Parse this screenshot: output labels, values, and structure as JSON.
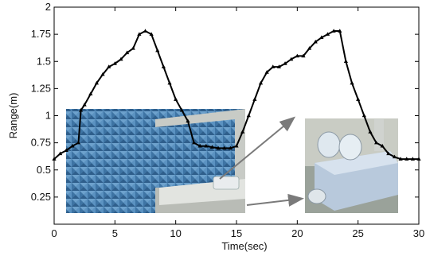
{
  "chart_data": {
    "type": "line",
    "title": "",
    "xlabel": "Time(sec)",
    "ylabel": "Range(m)",
    "xlim": [
      0,
      30
    ],
    "ylim": [
      0,
      2
    ],
    "grid": false,
    "xticks": [
      0,
      5,
      10,
      15,
      20,
      25,
      30
    ],
    "xtick_labels": [
      "0",
      "5",
      "10",
      "15",
      "20",
      "25",
      "30"
    ],
    "yticks": [
      0.25,
      0.5,
      0.75,
      1,
      1.25,
      1.5,
      1.75,
      2
    ],
    "ytick_labels": [
      "0.25",
      "0.5",
      "0.75",
      "1",
      "1.25",
      "1.5",
      "1.75",
      "2"
    ],
    "series": [
      {
        "color": "#000000",
        "marker": "triangle",
        "x": [
          0,
          0.5,
          1,
          1.5,
          2,
          2.2,
          2.5,
          3,
          3.5,
          4,
          4.5,
          5,
          5.5,
          6,
          6.5,
          7,
          7.5,
          8,
          8.5,
          9,
          9.5,
          10,
          10.5,
          11,
          11.5,
          12,
          12.5,
          13,
          13.5,
          14,
          14.5,
          15,
          15.5,
          16,
          16.5,
          17,
          17.5,
          18,
          18.5,
          19,
          19.5,
          20,
          20.5,
          21,
          21.5,
          22,
          22.5,
          23,
          23.5,
          24,
          24.5,
          25,
          25.5,
          26,
          26.5,
          27,
          27.5,
          28,
          28.5,
          29,
          29.5,
          30
        ],
        "y": [
          0.6,
          0.65,
          0.68,
          0.72,
          0.75,
          1.05,
          1.1,
          1.2,
          1.3,
          1.38,
          1.45,
          1.48,
          1.52,
          1.58,
          1.62,
          1.75,
          1.78,
          1.75,
          1.6,
          1.45,
          1.3,
          1.15,
          1.05,
          0.95,
          0.75,
          0.72,
          0.72,
          0.71,
          0.7,
          0.7,
          0.7,
          0.72,
          0.85,
          1.0,
          1.15,
          1.3,
          1.4,
          1.45,
          1.45,
          1.48,
          1.52,
          1.55,
          1.55,
          1.62,
          1.68,
          1.72,
          1.75,
          1.78,
          1.78,
          1.5,
          1.3,
          1.15,
          1.0,
          0.85,
          0.75,
          0.72,
          0.65,
          0.62,
          0.6,
          0.6,
          0.6,
          0.6
        ]
      }
    ],
    "inset_images": [
      {
        "description_icon": "anechoic-chamber-photo"
      },
      {
        "description_icon": "ultrasonic-sensor-closeup-photo"
      }
    ]
  }
}
